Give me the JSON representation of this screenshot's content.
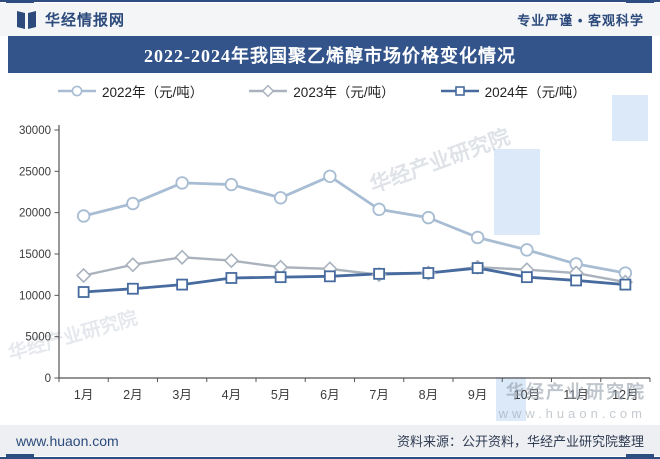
{
  "header": {
    "brand": "华经情报网",
    "slogan": "专业严谨 • 客观科学"
  },
  "title": "2022-2024年我国聚乙烯醇市场价格变化情况",
  "chart_data": {
    "type": "line",
    "title": "2022-2024年我国聚乙烯醇市场价格变化情况",
    "categories": [
      "1月",
      "2月",
      "3月",
      "4月",
      "5月",
      "6月",
      "7月",
      "8月",
      "9月",
      "10月",
      "11月",
      "12月"
    ],
    "series": [
      {
        "name": "2022年（元/吨）",
        "marker": "circle",
        "color": "#a8bdd3",
        "line_width": 2.8,
        "values": [
          19600,
          21100,
          23600,
          23400,
          21800,
          24400,
          20400,
          19400,
          17000,
          15500,
          13800,
          12700
        ]
      },
      {
        "name": "2023年（元/吨）",
        "marker": "diamond",
        "color": "#a9b2bd",
        "line_width": 2.4,
        "values": [
          12400,
          13700,
          14600,
          14200,
          13400,
          13200,
          12500,
          12700,
          13400,
          13100,
          12700,
          11600
        ]
      },
      {
        "name": "2024年（元/吨）",
        "marker": "square",
        "color": "#476b9e",
        "line_width": 2.8,
        "values": [
          10400,
          10800,
          11300,
          12100,
          12200,
          12300,
          12600,
          12700,
          13300,
          12200,
          11800,
          11300
        ]
      }
    ],
    "xlabel": "",
    "ylabel": "",
    "ylim": [
      0,
      30000
    ],
    "ytick_interval": 5000,
    "yticks": [
      0,
      5000,
      10000,
      15000,
      20000,
      25000,
      30000
    ],
    "grid": false,
    "legend_position": "top"
  },
  "watermarks": {
    "diagonal_text": "华经产业研究院",
    "corner_title": "华经产业研究院",
    "corner_url": "www.huaon.com"
  },
  "footer": {
    "site": "www.huaon.com",
    "source": "资料来源：公开资料，华经产业研究院整理"
  }
}
